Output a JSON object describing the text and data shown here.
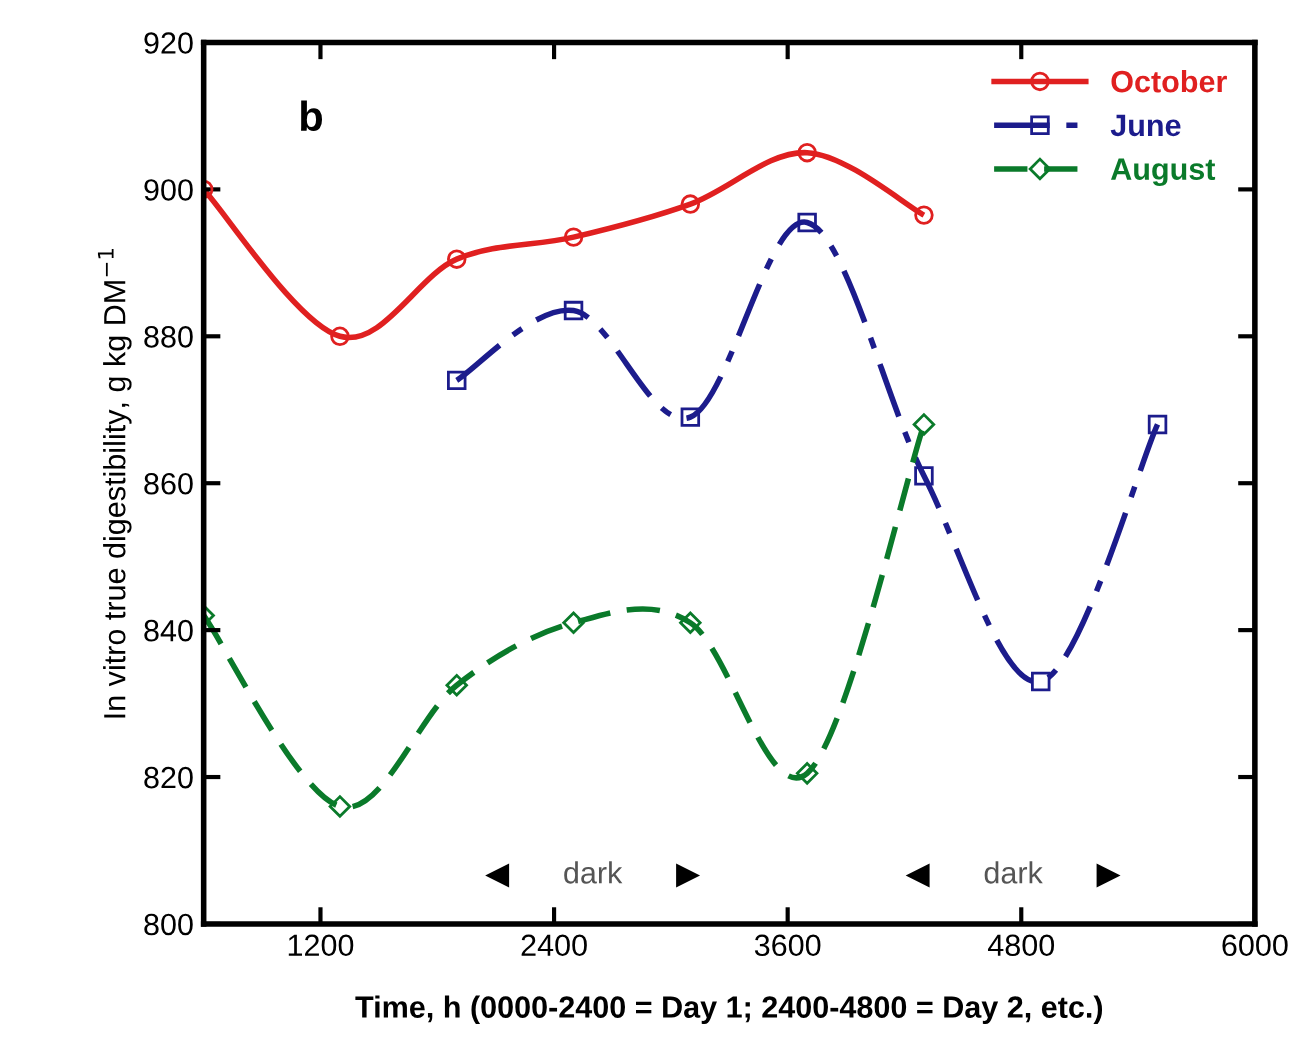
{
  "chart_data": {
    "type": "line",
    "title": "b",
    "xlabel": "Time, h (0000-2400 = Day 1; 2400-4800 = Day 2, etc.)",
    "ylabel": "In vitro true digestibility, g kg DM$^{−1}$",
    "xlim": [
      600,
      6000
    ],
    "xticks": [
      1200,
      2400,
      3600,
      4800,
      6000
    ],
    "ylim": [
      800,
      920
    ],
    "yticks": [
      800,
      820,
      840,
      860,
      880,
      900,
      920
    ],
    "grid": false,
    "legend": "top right",
    "series": [
      {
        "name": "October",
        "color": "#e02020",
        "marker": "circle",
        "line_style": "solid",
        "x": [
          600,
          1300,
          1900,
          2500,
          3100,
          3700,
          4300
        ],
        "values": [
          900,
          880,
          890.5,
          893.5,
          898,
          905,
          896.5
        ]
      },
      {
        "name": "June",
        "color": "#1c1c8c",
        "marker": "square",
        "line_style": "dashdot",
        "x": [
          1900,
          2500,
          3100,
          3700,
          4300,
          4900,
          5500
        ],
        "values": [
          874,
          883.5,
          869,
          895.5,
          861,
          833,
          868
        ]
      },
      {
        "name": "August",
        "color": "#0a7a2a",
        "marker": "diamond",
        "line_style": "dashed",
        "x": [
          600,
          1300,
          1900,
          2500,
          3100,
          3700,
          4300
        ],
        "values": [
          842,
          816,
          832.5,
          841,
          841,
          820.5,
          868
        ]
      }
    ],
    "annotations": [
      "dark",
      "dark"
    ]
  }
}
